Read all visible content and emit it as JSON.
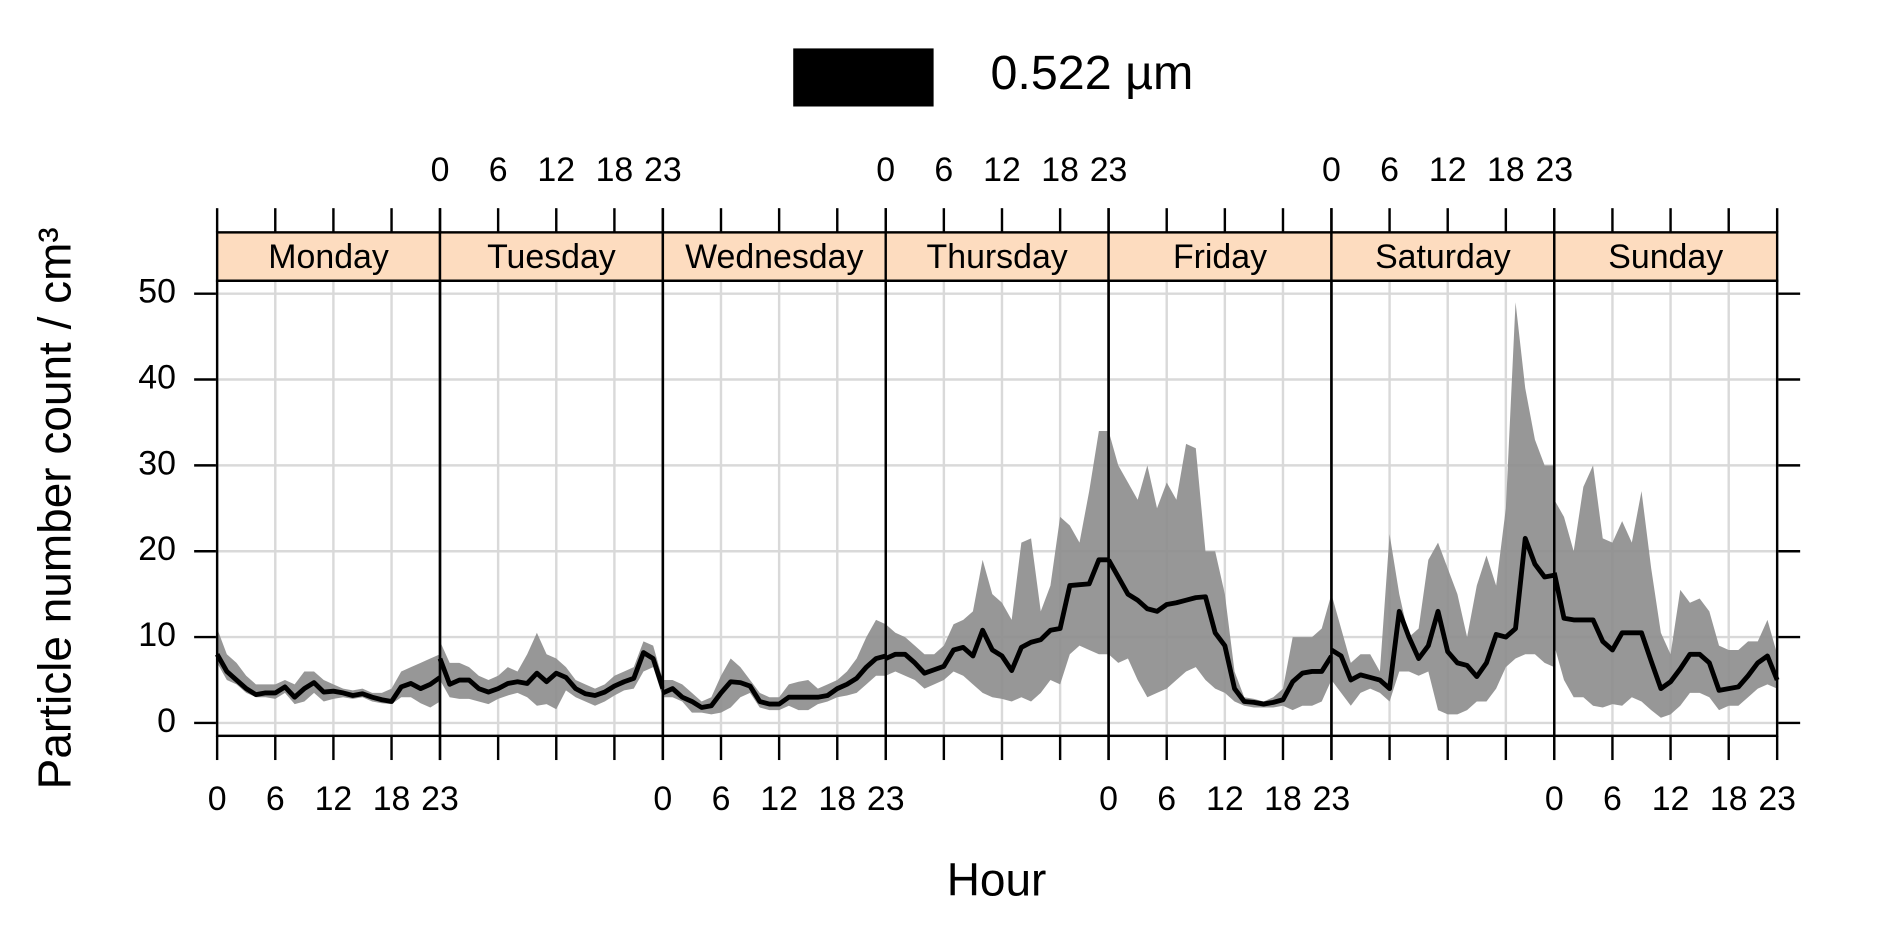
{
  "chart_data": {
    "type": "line",
    "ylabel": "Particle number count / cm³",
    "xlabel": "Hour",
    "categories": [
      "Monday",
      "Tuesday",
      "Wednesday",
      "Thursday",
      "Friday",
      "Saturday",
      "Sunday"
    ],
    "x": [
      0,
      1,
      2,
      3,
      4,
      5,
      6,
      7,
      8,
      9,
      10,
      11,
      12,
      13,
      14,
      15,
      16,
      17,
      18,
      19,
      20,
      21,
      22,
      23
    ],
    "xlim": [
      0,
      23
    ],
    "xticks": [
      0,
      6,
      12,
      18,
      23
    ],
    "ylim": [
      -1.5,
      51.5
    ],
    "yticks": [
      0,
      10,
      20,
      30,
      40,
      50
    ],
    "grid": true,
    "strip_color": "#fddcbf",
    "band_color": "#8c8c8c",
    "series": [
      {
        "name": "0.522 µm",
        "color": "#000000",
        "values": [
          [
            8,
            6,
            5,
            4,
            3.3,
            3.5,
            3.5,
            4.2,
            3,
            4,
            4.7,
            3.6,
            3.7,
            3.5,
            3.2,
            3.4,
            3,
            2.7,
            2.5,
            4.2,
            4.6,
            4,
            4.5,
            5.3
          ],
          [
            7.5,
            4.5,
            5,
            5,
            4,
            3.6,
            4,
            4.6,
            4.8,
            4.6,
            5.8,
            4.8,
            5.8,
            5.3,
            4,
            3.4,
            3.2,
            3.6,
            4.3,
            4.8,
            5.2,
            8.2,
            7.5,
            4
          ],
          [
            3.5,
            4,
            3,
            2.5,
            1.8,
            2,
            3.5,
            4.8,
            4.7,
            4.3,
            2.5,
            2.2,
            2.2,
            3,
            3,
            3,
            3,
            3.2,
            4,
            4.5,
            5.2,
            6.5,
            7.5,
            7.8
          ],
          [
            7.5,
            8,
            8,
            7,
            5.8,
            6.2,
            6.6,
            8.5,
            8.8,
            7.8,
            10.8,
            8.5,
            7.8,
            6.1,
            8.8,
            9.4,
            9.7,
            10.8,
            11,
            16,
            16.1,
            16.2,
            19,
            19
          ],
          [
            19,
            17,
            15,
            14.3,
            13.3,
            13,
            13.8,
            14,
            14.3,
            14.6,
            14.7,
            10.5,
            9,
            4,
            2.5,
            2.4,
            2.2,
            2.4,
            2.7,
            4.8,
            5.8,
            6,
            6,
            7.8
          ],
          [
            8.5,
            7.8,
            5,
            5.6,
            5.3,
            5,
            4,
            13,
            10,
            7.5,
            9,
            13,
            8.3,
            7,
            6.7,
            5.4,
            7,
            10.3,
            10,
            11,
            21.5,
            18.5,
            17,
            17.2
          ],
          [
            17.5,
            12.2,
            12,
            12,
            12,
            9.5,
            8.5,
            10.5,
            10.5,
            10.5,
            7.2,
            4,
            4.8,
            6.3,
            8,
            8,
            7,
            3.8,
            4,
            4.2,
            5.5,
            7,
            7.8,
            5
          ]
        ],
        "lower": [
          [
            7,
            5,
            4.5,
            3.5,
            3,
            3,
            2.8,
            3.5,
            2.2,
            2.5,
            3.5,
            2.5,
            2.8,
            3,
            2.8,
            3,
            2.5,
            2.3,
            2.2,
            3,
            3,
            2.3,
            1.8,
            2.5
          ],
          [
            5,
            3,
            2.8,
            2.8,
            2.5,
            2.2,
            2.8,
            3.2,
            3.5,
            3,
            2,
            2.2,
            1.6,
            3.8,
            3,
            2.5,
            2,
            2.5,
            3.2,
            3.8,
            4,
            6,
            6.5,
            3
          ],
          [
            3,
            3,
            2.5,
            1.2,
            1.2,
            1,
            1.2,
            1.8,
            3,
            3.5,
            1.8,
            1.5,
            1.5,
            2,
            1.5,
            1.5,
            2.2,
            2.5,
            3,
            3.2,
            3.5,
            4.5,
            5.5,
            5.5
          ],
          [
            5.5,
            6,
            5.5,
            5,
            4,
            4.5,
            5,
            6,
            5.5,
            4.5,
            3.5,
            3,
            2.8,
            2.5,
            3,
            2.5,
            3.5,
            5,
            4.5,
            8,
            9,
            8.5,
            8,
            8
          ],
          [
            8,
            7,
            7.5,
            5,
            3,
            3.5,
            4,
            5,
            6,
            6.5,
            5,
            4,
            3.5,
            2.5,
            2,
            1.8,
            1.8,
            1.8,
            2,
            1.5,
            2,
            2,
            2.5,
            5
          ],
          [
            5,
            3.5,
            2,
            3.5,
            4,
            3.5,
            2.5,
            6,
            6,
            5.5,
            6,
            1.5,
            1,
            1,
            1.5,
            2.5,
            2.5,
            4,
            6.5,
            7.5,
            8,
            8,
            7,
            6.5
          ],
          [
            9,
            5,
            3,
            3,
            2,
            1.8,
            2.2,
            2,
            3,
            2.5,
            1.5,
            0.6,
            1,
            2,
            3.5,
            3.5,
            3,
            1.5,
            2,
            2,
            3,
            4,
            4.5,
            4
          ]
        ],
        "upper": [
          [
            11,
            8,
            7,
            5.5,
            4.5,
            4.5,
            4.5,
            5,
            4.5,
            6,
            6,
            5,
            4.5,
            4,
            3.8,
            4,
            3.5,
            3.5,
            4,
            6,
            6.5,
            7,
            7.5,
            8
          ],
          [
            9.5,
            7,
            7,
            6.5,
            5.5,
            5,
            5.5,
            6.5,
            6,
            8,
            10.5,
            8,
            7.5,
            6.5,
            5,
            4.5,
            4,
            4.5,
            5.5,
            6,
            6.5,
            9.5,
            9,
            5
          ],
          [
            5,
            5,
            4.5,
            3.5,
            2.5,
            3,
            5.5,
            7.5,
            6.5,
            5,
            3.5,
            3,
            3,
            4.5,
            4.8,
            5,
            4,
            4.5,
            5,
            6,
            7.5,
            10,
            12,
            11.5
          ],
          [
            11.5,
            10.5,
            10,
            9,
            8,
            8,
            9,
            11.5,
            12,
            13,
            19,
            15,
            14,
            12,
            21,
            21.5,
            13,
            16,
            24,
            23,
            21,
            27,
            34,
            34
          ],
          [
            34,
            30,
            28,
            26,
            30,
            25,
            28,
            26,
            32.5,
            32,
            20,
            20,
            15,
            6,
            3,
            2.8,
            2.5,
            3,
            4,
            10,
            10,
            10,
            11,
            15
          ],
          [
            15,
            11,
            7,
            8,
            8,
            6,
            22,
            15,
            10,
            11,
            19,
            21,
            18,
            15,
            10,
            16,
            19.5,
            16,
            25,
            49,
            39,
            33,
            30,
            30
          ],
          [
            26,
            24,
            20,
            27.5,
            30,
            21.5,
            21,
            23.5,
            21,
            27,
            18,
            10.5,
            8,
            15.5,
            14,
            14.5,
            13,
            9,
            8.5,
            8.5,
            9.5,
            9.5,
            12,
            8
          ]
        ]
      }
    ]
  }
}
